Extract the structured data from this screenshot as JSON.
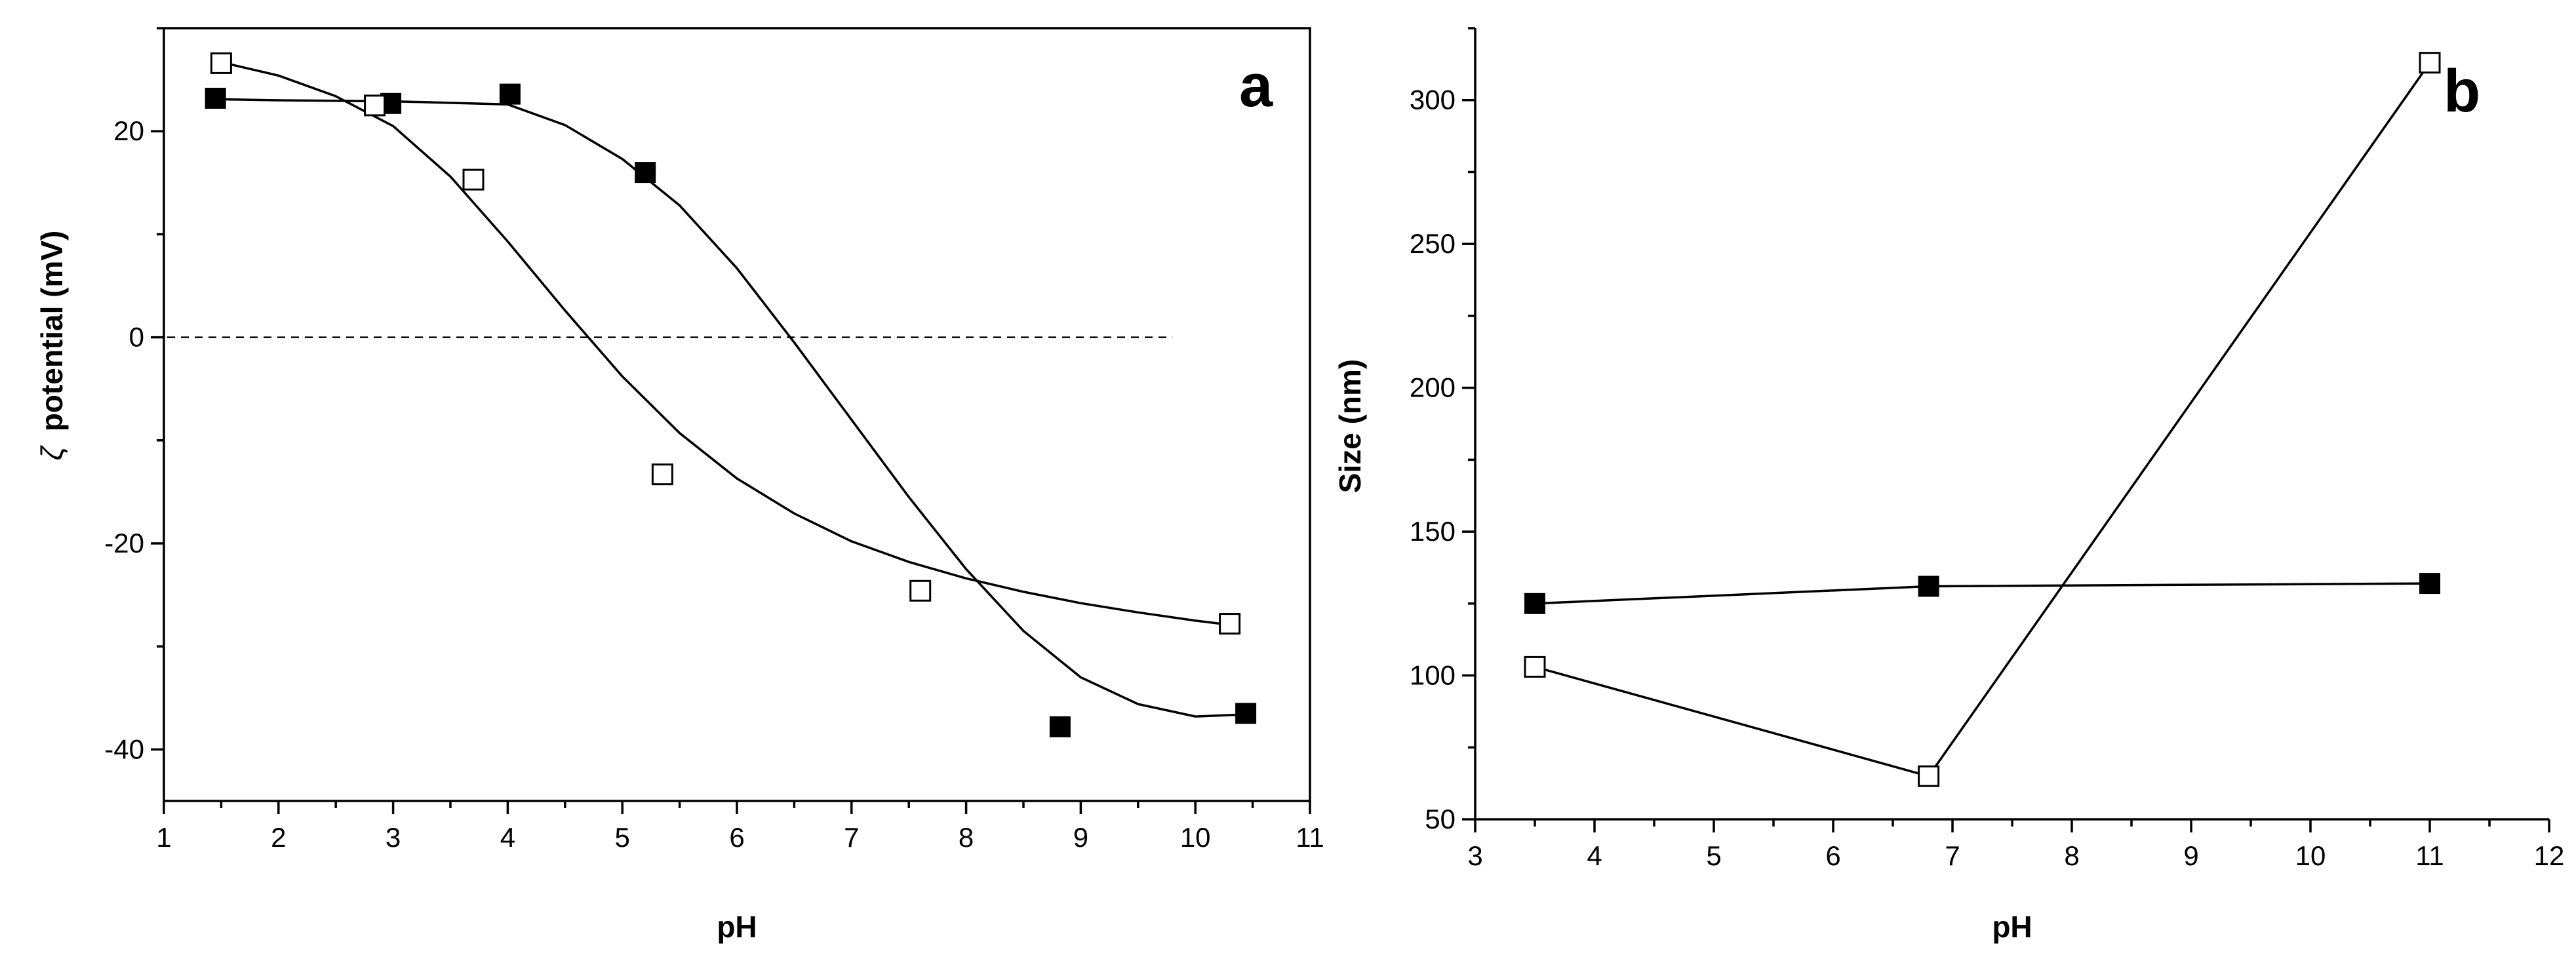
{
  "chart_data": [
    {
      "id": "a",
      "type": "scatter",
      "panel_label": "a",
      "xlabel": "pH",
      "ylabel": "potential (mV)",
      "ylabel_symbol": "ζ",
      "xlim": [
        1,
        11
      ],
      "ylim": [
        -45,
        30
      ],
      "xticks": [
        1,
        2,
        3,
        4,
        5,
        6,
        7,
        8,
        9,
        10,
        11
      ],
      "yticks": [
        -40,
        -20,
        0,
        20
      ],
      "reference_line": {
        "y": 0,
        "style": "dashed"
      },
      "series": [
        {
          "name": "filled squares",
          "marker": "filled-square",
          "points": [
            [
              1.45,
              23.2
            ],
            [
              2.98,
              22.7
            ],
            [
              4.02,
              23.6
            ],
            [
              5.2,
              16.0
            ],
            [
              8.82,
              -37.8
            ],
            [
              10.44,
              -36.5
            ]
          ],
          "fit": [
            [
              1.5,
              23.1
            ],
            [
              2.0,
              23.0
            ],
            [
              3.0,
              22.9
            ],
            [
              4.0,
              22.6
            ],
            [
              4.5,
              20.6
            ],
            [
              5.0,
              17.3
            ],
            [
              5.5,
              12.8
            ],
            [
              6.0,
              6.7
            ],
            [
              6.5,
              -0.5
            ],
            [
              7.0,
              -8.0
            ],
            [
              7.5,
              -15.5
            ],
            [
              8.0,
              -22.5
            ],
            [
              8.5,
              -28.5
            ],
            [
              9.0,
              -33.0
            ],
            [
              9.5,
              -35.6
            ],
            [
              10.0,
              -36.8
            ],
            [
              10.44,
              -36.6
            ]
          ]
        },
        {
          "name": "open squares",
          "marker": "open-square",
          "points": [
            [
              1.5,
              26.6
            ],
            [
              2.84,
              22.5
            ],
            [
              3.7,
              15.3
            ],
            [
              5.35,
              -13.3
            ],
            [
              7.6,
              -24.6
            ],
            [
              10.3,
              -27.8
            ]
          ],
          "fit": [
            [
              1.5,
              26.7
            ],
            [
              2.0,
              25.4
            ],
            [
              2.5,
              23.4
            ],
            [
              3.0,
              20.5
            ],
            [
              3.5,
              15.6
            ],
            [
              4.0,
              9.3
            ],
            [
              4.5,
              2.6
            ],
            [
              5.0,
              -3.8
            ],
            [
              5.5,
              -9.3
            ],
            [
              6.0,
              -13.7
            ],
            [
              6.5,
              -17.1
            ],
            [
              7.0,
              -19.8
            ],
            [
              7.5,
              -21.8
            ],
            [
              8.0,
              -23.4
            ],
            [
              8.5,
              -24.7
            ],
            [
              9.0,
              -25.8
            ],
            [
              9.5,
              -26.7
            ],
            [
              10.0,
              -27.5
            ],
            [
              10.3,
              -27.9
            ]
          ]
        }
      ]
    },
    {
      "id": "b",
      "type": "line",
      "panel_label": "b",
      "xlabel": "pH",
      "ylabel": "Size (nm)",
      "xlim": [
        3,
        12
      ],
      "ylim": [
        50,
        325
      ],
      "xticks": [
        3,
        4,
        5,
        6,
        7,
        8,
        9,
        10,
        11,
        12
      ],
      "yticks": [
        50,
        100,
        150,
        200,
        250,
        300
      ],
      "series": [
        {
          "name": "filled squares",
          "marker": "filled-square",
          "points": [
            [
              3.5,
              125
            ],
            [
              6.8,
              131
            ],
            [
              11.0,
              132
            ]
          ]
        },
        {
          "name": "open squares",
          "marker": "open-square",
          "points": [
            [
              3.5,
              103
            ],
            [
              6.8,
              65
            ],
            [
              11.0,
              313
            ]
          ]
        }
      ]
    }
  ]
}
